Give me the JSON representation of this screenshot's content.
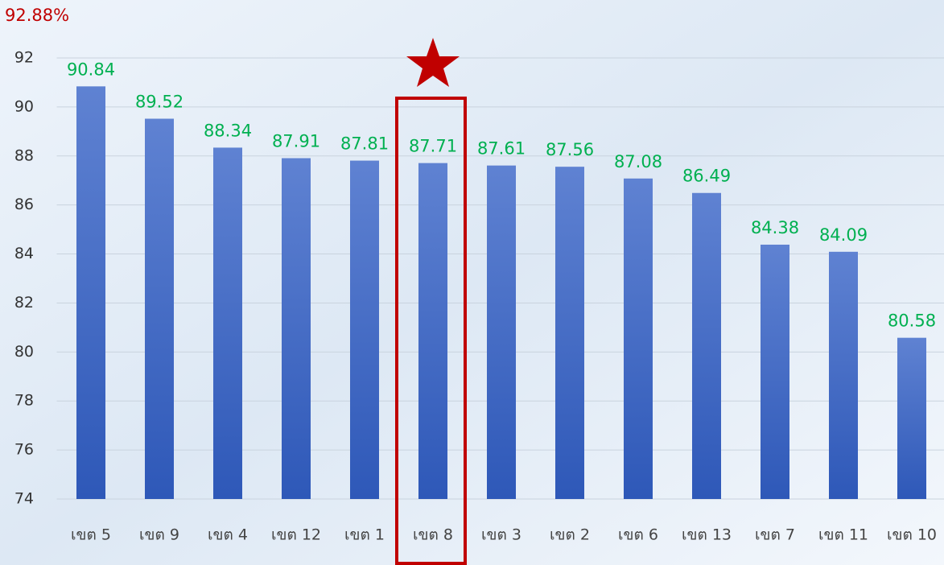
{
  "chart_data": {
    "type": "bar",
    "annotation": "92.88%",
    "categories": [
      "เขต 5",
      "เขต 9",
      "เขต 4",
      "เขต 12",
      "เขต 1",
      "เขต 8",
      "เขต 3",
      "เขต 2",
      "เขต 6",
      "เขต 13",
      "เขต 7",
      "เขต 11",
      "เขต 10"
    ],
    "values": [
      90.84,
      89.52,
      88.34,
      87.91,
      87.81,
      87.71,
      87.61,
      87.56,
      87.08,
      86.49,
      84.38,
      84.09,
      80.58
    ],
    "color": "#3f68c4",
    "ylim": [
      74,
      92
    ],
    "yticks": [
      74,
      76,
      78,
      80,
      82,
      84,
      86,
      88,
      90,
      92
    ],
    "grid": true
  }
}
